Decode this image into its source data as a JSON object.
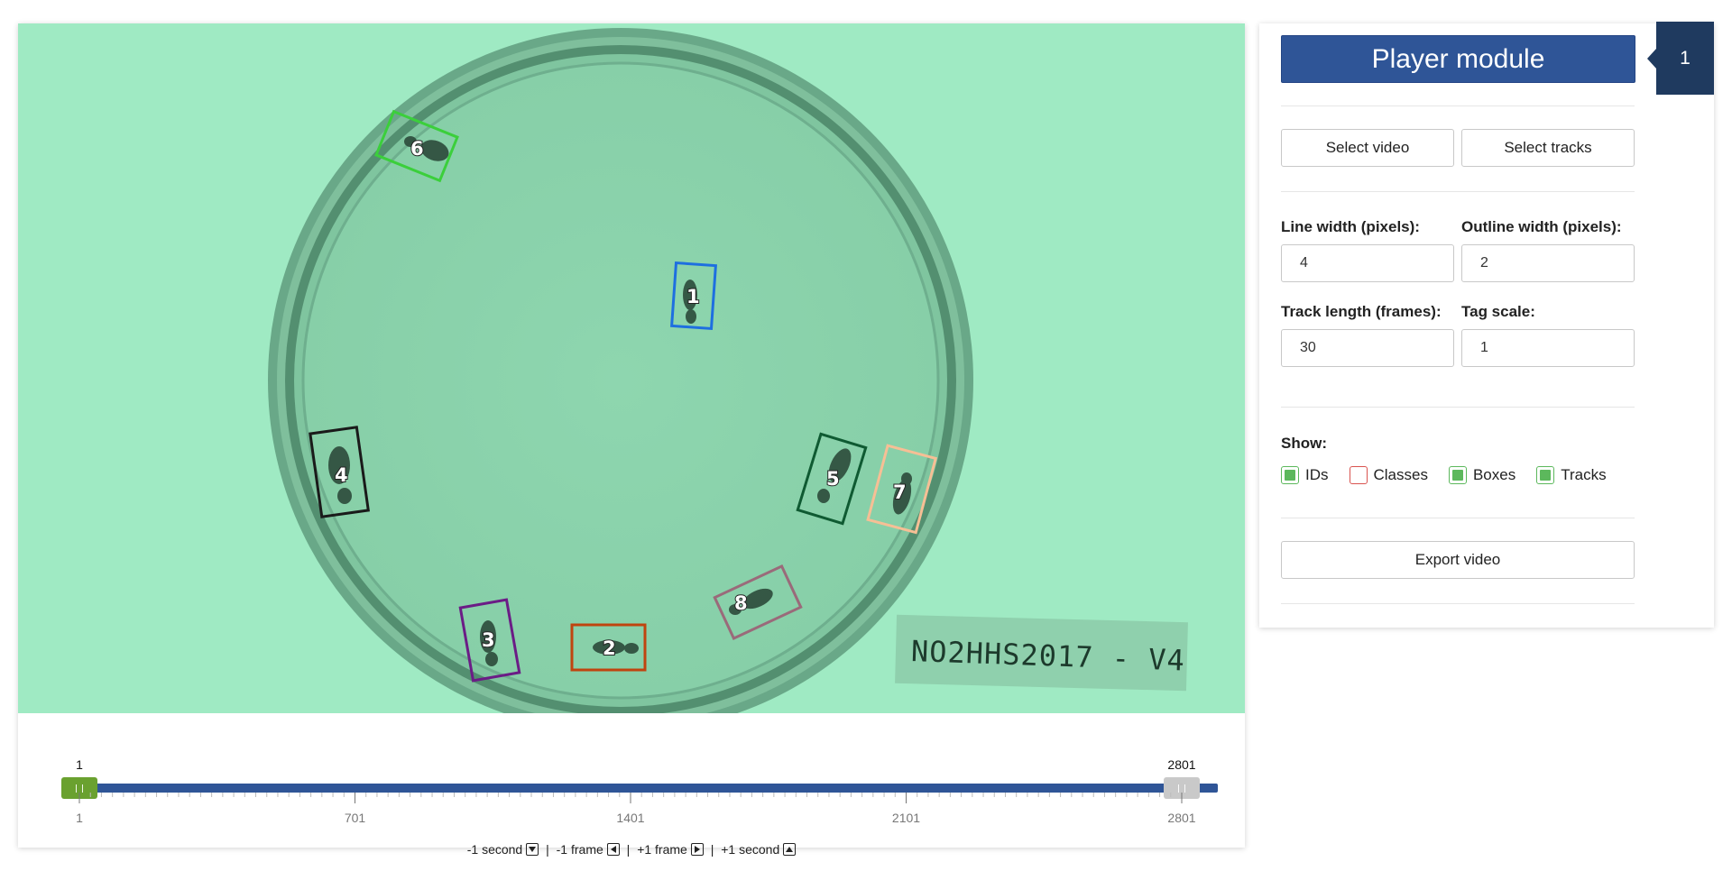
{
  "video": {
    "boxes": [
      {
        "id": "1",
        "color": "#1e6fe0"
      },
      {
        "id": "2",
        "color": "#c0440f"
      },
      {
        "id": "3",
        "color": "#6b1c86"
      },
      {
        "id": "4",
        "color": "#1a1a1a"
      },
      {
        "id": "5",
        "color": "#0f5a32"
      },
      {
        "id": "6",
        "color": "#3bcf3b"
      },
      {
        "id": "7",
        "color": "#f6bf95"
      },
      {
        "id": "8",
        "color": "#9a6a7a"
      }
    ],
    "label_text": "NO2HHS2017 - V4"
  },
  "slider": {
    "start_value": "1",
    "end_value": "2801",
    "min": 1,
    "max": 2801,
    "tick_labels": [
      "1",
      "701",
      "1401",
      "2101",
      "2801"
    ],
    "track_color": "#2f5597",
    "start_handle_color": "#6aa12f",
    "end_handle_color": "#c9c9c9"
  },
  "nav": {
    "minus_second": "-1 second",
    "minus_frame": "-1 frame",
    "plus_frame": "+1 frame",
    "plus_second": "+1 second",
    "separator": "|"
  },
  "panel": {
    "title": "Player module",
    "badge": "1",
    "select_video": "Select video",
    "select_tracks": "Select tracks",
    "line_width_label": "Line width (pixels):",
    "line_width_value": "4",
    "outline_width_label": "Outline width (pixels):",
    "outline_width_value": "2",
    "track_length_label": "Track length (frames):",
    "track_length_value": "30",
    "tag_scale_label": "Tag scale:",
    "tag_scale_value": "1",
    "show_label": "Show:",
    "checks": [
      {
        "label": "IDs",
        "checked": true
      },
      {
        "label": "Classes",
        "checked": false
      },
      {
        "label": "Boxes",
        "checked": true
      },
      {
        "label": "Tracks",
        "checked": true
      }
    ],
    "export_video": "Export video",
    "accent_color": "#2f5597",
    "check_on_color": "#5cb85c",
    "check_off_color": "#d9534f"
  }
}
